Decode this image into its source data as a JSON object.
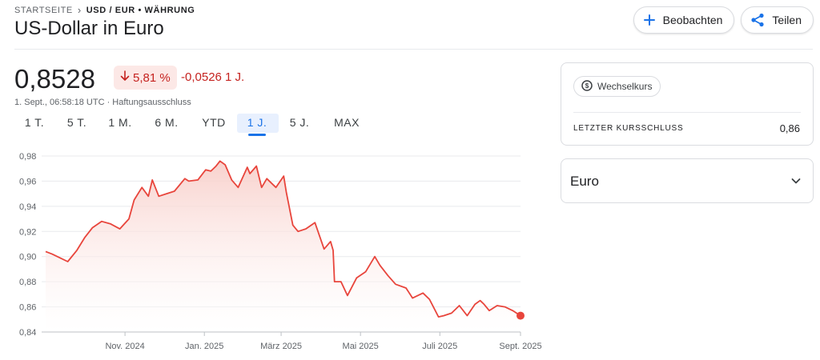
{
  "breadcrumb": {
    "home": "STARTSEITE",
    "separator": "›",
    "current": "USD / EUR • WÄHRUNG"
  },
  "title": "US-Dollar in Euro",
  "actions": {
    "watch_label": "Beobachten",
    "share_label": "Teilen"
  },
  "quote": {
    "price": "0,8528",
    "change_pct": "5,81 %",
    "change_abs": "-0,0526 1 J.",
    "meta": "1. Sept., 06:58:18 UTC · Haftungsausschluss"
  },
  "range_tabs": [
    "1 T.",
    "5 T.",
    "1 M.",
    "6 M.",
    "YTD",
    "1 J.",
    "5 J.",
    "MAX"
  ],
  "active_range": "1 J.",
  "colors": {
    "line": "#e8453c",
    "fill": "#fbe3e0",
    "negative": "#c5221f",
    "accent": "#1a73e8"
  },
  "sidebar": {
    "chip_label": "Wechselkurs",
    "chip_icon": "currency-icon",
    "prev_close_label": "LETZTER KURSSCHLUSS",
    "prev_close_value": "0,86",
    "currency_label": "Euro"
  },
  "chart_data": {
    "type": "area",
    "title": "",
    "xlabel": "",
    "ylabel": "",
    "ylim": [
      0.84,
      0.98
    ],
    "y_ticks": [
      "0,98",
      "0,96",
      "0,94",
      "0,92",
      "0,90",
      "0,88",
      "0,86",
      "0,84"
    ],
    "y_tick_values": [
      0.98,
      0.96,
      0.94,
      0.92,
      0.9,
      0.88,
      0.86,
      0.84
    ],
    "x_range": [
      "2024-09-01",
      "2025-09-01"
    ],
    "x_ticks": [
      {
        "label": "Nov. 2024",
        "date": "2024-11-01"
      },
      {
        "label": "Jan. 2025",
        "date": "2025-01-01"
      },
      {
        "label": "März 2025",
        "date": "2025-03-01"
      },
      {
        "label": "Mai 2025",
        "date": "2025-05-01"
      },
      {
        "label": "Juli 2025",
        "date": "2025-07-01"
      },
      {
        "label": "Sept. 2025",
        "date": "2025-09-01"
      }
    ],
    "grid": true,
    "series": [
      {
        "x": [
          "2024-09-01",
          "2024-09-06",
          "2024-09-12",
          "2024-09-18",
          "2024-09-25",
          "2024-10-01",
          "2024-10-07",
          "2024-10-14",
          "2024-10-21",
          "2024-10-28",
          "2024-11-04",
          "2024-11-08",
          "2024-11-14",
          "2024-11-19",
          "2024-11-22",
          "2024-11-27",
          "2024-12-03",
          "2024-12-09",
          "2024-12-17",
          "2024-12-20",
          "2024-12-27",
          "2025-01-02",
          "2025-01-06",
          "2025-01-10",
          "2025-01-13",
          "2025-01-17",
          "2025-01-22",
          "2025-01-27",
          "2025-02-03",
          "2025-02-05",
          "2025-02-10",
          "2025-02-14",
          "2025-02-18",
          "2025-02-25",
          "2025-03-03",
          "2025-03-05",
          "2025-03-10",
          "2025-03-14",
          "2025-03-20",
          "2025-03-27",
          "2025-04-03",
          "2025-04-08",
          "2025-04-10",
          "2025-04-11",
          "2025-04-16",
          "2025-04-21",
          "2025-04-28",
          "2025-05-05",
          "2025-05-12",
          "2025-05-16",
          "2025-05-22",
          "2025-05-28",
          "2025-06-05",
          "2025-06-10",
          "2025-06-18",
          "2025-06-23",
          "2025-06-30",
          "2025-07-04",
          "2025-07-10",
          "2025-07-16",
          "2025-07-22",
          "2025-07-28",
          "2025-08-01",
          "2025-08-04",
          "2025-08-08",
          "2025-08-14",
          "2025-08-20",
          "2025-08-26",
          "2025-09-01"
        ],
        "y": [
          0.904,
          0.902,
          0.899,
          0.896,
          0.905,
          0.915,
          0.923,
          0.928,
          0.926,
          0.922,
          0.93,
          0.945,
          0.955,
          0.948,
          0.961,
          0.948,
          0.95,
          0.952,
          0.962,
          0.96,
          0.961,
          0.969,
          0.968,
          0.972,
          0.976,
          0.973,
          0.961,
          0.955,
          0.971,
          0.966,
          0.972,
          0.955,
          0.962,
          0.955,
          0.964,
          0.951,
          0.925,
          0.92,
          0.922,
          0.927,
          0.906,
          0.912,
          0.905,
          0.88,
          0.88,
          0.869,
          0.883,
          0.888,
          0.9,
          0.893,
          0.885,
          0.878,
          0.875,
          0.867,
          0.871,
          0.866,
          0.852,
          0.853,
          0.855,
          0.861,
          0.853,
          0.862,
          0.865,
          0.862,
          0.857,
          0.861,
          0.86,
          0.857,
          0.853
        ]
      }
    ]
  }
}
